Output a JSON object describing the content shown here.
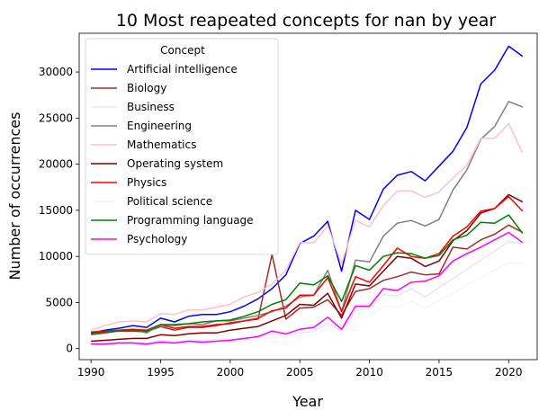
{
  "chart_data": {
    "type": "line",
    "title": "10 Most reapeated concepts for nan by year",
    "xlabel": "Year",
    "ylabel": "Number of occurrences",
    "xlim": [
      1989.15,
      2022.05
    ],
    "ylim": [
      -1200,
      34200
    ],
    "xticks": [
      1990,
      1995,
      2000,
      2005,
      2010,
      2015,
      2020
    ],
    "yticks": [
      0,
      5000,
      10000,
      15000,
      20000,
      25000,
      30000
    ],
    "legend": {
      "title": "Concept",
      "placement": "top-left"
    },
    "x": [
      1990,
      1991,
      1992,
      1993,
      1994,
      1995,
      1996,
      1997,
      1998,
      1999,
      2000,
      2001,
      2002,
      2003,
      2004,
      2005,
      2006,
      2007,
      2008,
      2009,
      2010,
      2011,
      2012,
      2013,
      2014,
      2015,
      2016,
      2017,
      2018,
      2019,
      2020,
      2021
    ],
    "series": [
      {
        "name": "Artificial intelligence",
        "color": "#0000ff",
        "values": [
          1700,
          2000,
          2200,
          2500,
          2300,
          3300,
          2900,
          3500,
          3700,
          3700,
          4000,
          4600,
          5400,
          6500,
          8000,
          11400,
          12200,
          13800,
          8400,
          15000,
          14000,
          17300,
          18800,
          19200,
          18200,
          19800,
          21400,
          24000,
          28700,
          30200,
          32800,
          31700
        ]
      },
      {
        "name": "Biology",
        "color": "#a52a2a",
        "values": [
          1500,
          1700,
          1900,
          1900,
          1800,
          2400,
          2000,
          2300,
          2300,
          2500,
          2800,
          3000,
          3200,
          10200,
          3200,
          4400,
          4500,
          5300,
          3600,
          6200,
          6500,
          7400,
          7800,
          8300,
          8000,
          8100,
          11000,
          10800,
          11800,
          12400,
          13400,
          12600
        ]
      },
      {
        "name": "Business",
        "color": "#e6e6fa",
        "values": [
          600,
          600,
          700,
          700,
          600,
          900,
          700,
          900,
          900,
          1000,
          1000,
          1100,
          1300,
          1600,
          1600,
          1700,
          1900,
          2700,
          1900,
          4100,
          4400,
          5900,
          5700,
          6500,
          5600,
          6600,
          7600,
          8600,
          9600,
          10600,
          11600,
          11400
        ]
      },
      {
        "name": "Engineering",
        "color": "#808080",
        "values": [
          1500,
          1800,
          2000,
          2100,
          1700,
          2600,
          2500,
          2700,
          2600,
          3000,
          3000,
          3300,
          3600,
          4000,
          4600,
          5600,
          5800,
          8500,
          4000,
          9600,
          9400,
          12200,
          13600,
          13900,
          13300,
          14000,
          17200,
          19400,
          22700,
          24100,
          26800,
          26200
        ]
      },
      {
        "name": "Mathematics",
        "color": "#ffc0cb",
        "values": [
          2000,
          2500,
          2900,
          3000,
          2900,
          3800,
          3700,
          4200,
          4200,
          4500,
          4800,
          5600,
          6100,
          7000,
          8500,
          11500,
          11500,
          13300,
          9200,
          13900,
          13200,
          15500,
          17100,
          17100,
          16400,
          17000,
          18500,
          19900,
          22800,
          22800,
          24400,
          21200
        ]
      },
      {
        "name": "Operating system",
        "color": "#800000",
        "values": [
          800,
          900,
          1000,
          1100,
          1100,
          1500,
          1400,
          1600,
          1700,
          1700,
          2000,
          2200,
          2400,
          3000,
          3600,
          4800,
          4700,
          6000,
          3300,
          7000,
          6800,
          8400,
          10000,
          9800,
          8900,
          9500,
          11700,
          12800,
          14700,
          15200,
          16700,
          15900
        ]
      },
      {
        "name": "Physics",
        "color": "#ff0000",
        "values": [
          1800,
          1900,
          2000,
          2100,
          2000,
          2600,
          2200,
          2400,
          2400,
          2600,
          2700,
          3000,
          3300,
          4100,
          4400,
          5800,
          5800,
          7700,
          4000,
          7800,
          7200,
          9000,
          10900,
          10000,
          9800,
          10300,
          12200,
          13200,
          14900,
          15200,
          16500,
          14900
        ]
      },
      {
        "name": "Political science",
        "color": "#f5f5ff",
        "values": [
          400,
          450,
          500,
          500,
          450,
          600,
          550,
          650,
          650,
          700,
          750,
          850,
          950,
          1200,
          1200,
          1400,
          1500,
          2100,
          1500,
          3200,
          3500,
          4600,
          4500,
          5100,
          4400,
          5200,
          6000,
          6900,
          7700,
          8500,
          9300,
          9200
        ]
      },
      {
        "name": "Programming language",
        "color": "#008000",
        "values": [
          1600,
          1800,
          2000,
          2000,
          1900,
          2600,
          2600,
          2700,
          2900,
          3000,
          3100,
          3500,
          4000,
          4800,
          5300,
          7100,
          6900,
          7900,
          5100,
          9000,
          8500,
          10000,
          10400,
          10300,
          9800,
          10100,
          11800,
          12300,
          13700,
          13600,
          14500,
          12500
        ]
      },
      {
        "name": "Psychology",
        "color": "#ff00ff",
        "values": [
          500,
          500,
          600,
          600,
          500,
          700,
          600,
          800,
          700,
          800,
          900,
          1100,
          1300,
          1900,
          1600,
          2100,
          2300,
          3400,
          2100,
          4600,
          4600,
          6500,
          6300,
          7200,
          7300,
          7900,
          9500,
          10300,
          11000,
          11800,
          12600,
          11500
        ]
      }
    ]
  }
}
